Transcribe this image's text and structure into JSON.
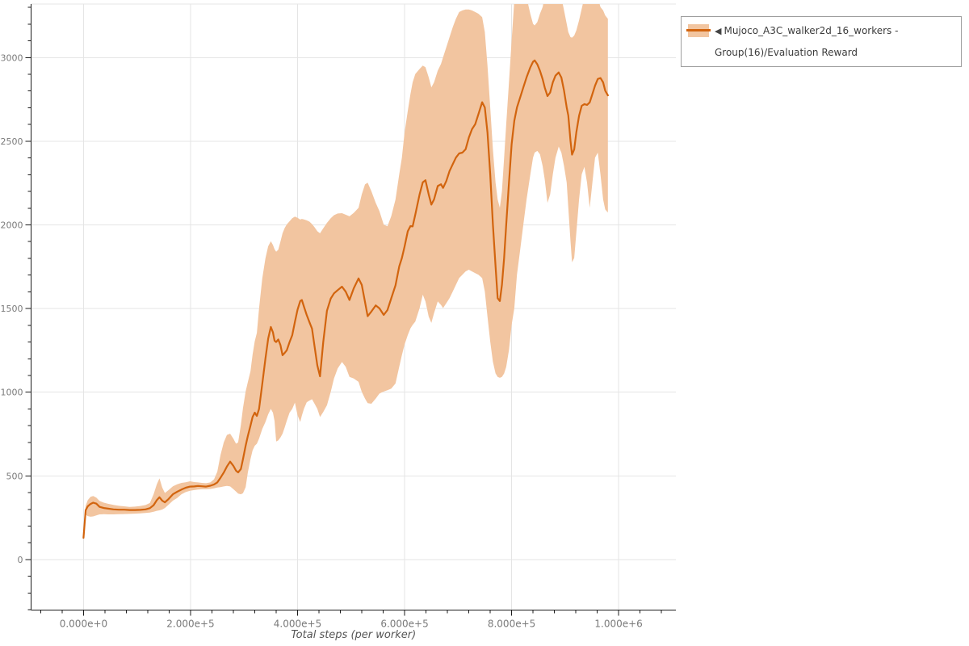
{
  "legend": {
    "collapse_icon": "◀",
    "label": "Mujoco_A3C_walker2d_16_workers - Group(16)/Evaluation Reward"
  },
  "colors": {
    "line": "#d2640e",
    "band": "#f2c5a0",
    "grid": "#e5e5e5",
    "axis": "#1c1c1c",
    "tick_label": "#7a7a7a",
    "axis_title": "#555555",
    "legend_border": "#9e9e9e",
    "legend_text": "#3c3c3c",
    "background": "#ffffff"
  },
  "chart_data": {
    "type": "line",
    "title": "",
    "xlabel": "Total steps (per worker)",
    "ylabel": "",
    "grid": true,
    "legend_position": "top-right-outside",
    "x_range": [
      -98000,
      1107000
    ],
    "y_range": [
      -302,
      3320
    ],
    "x_ticks": {
      "values": [
        0,
        200000,
        400000,
        600000,
        800000,
        1000000
      ],
      "labels": [
        "0.000e+0",
        "2.000e+5",
        "4.000e+5",
        "6.000e+5",
        "8.000e+5",
        "1.000e+6"
      ],
      "minor_step": 40000,
      "minor_range": [
        -80000,
        1080000
      ]
    },
    "y_ticks": {
      "values": [
        0,
        500,
        1000,
        1500,
        2000,
        2500,
        3000
      ],
      "labels": [
        "0",
        "500",
        "1000",
        "1500",
        "2000",
        "2500",
        "3000"
      ],
      "minor_step": 100,
      "minor_range": [
        -300,
        3300
      ]
    },
    "series": [
      {
        "name": "Mujoco_A3C_walker2d_16_workers - Group(16)/Evaluation Reward",
        "type": "line_with_band",
        "color": "#d2640e",
        "band_color": "#f2c5a0",
        "x": [
          0,
          4000,
          8000,
          13000,
          18000,
          24000,
          30000,
          38000,
          46000,
          56000,
          66000,
          76000,
          86000,
          96000,
          106000,
          116000,
          124000,
          131000,
          137000,
          142000,
          147000,
          152000,
          159000,
          167000,
          175000,
          183000,
          191000,
          199000,
          207000,
          214000,
          221000,
          229000,
          237000,
          244000,
          250000,
          256000,
          262000,
          268000,
          274000,
          280000,
          285000,
          289000,
          294000,
          298000,
          303000,
          307000,
          312000,
          316000,
          320000,
          324000,
          328000,
          334000,
          340000,
          345000,
          350000,
          354000,
          357000,
          360000,
          364000,
          368000,
          372000,
          376000,
          380000,
          385000,
          390000,
          395000,
          400000,
          405000,
          408000,
          412000,
          417000,
          422000,
          427000,
          432000,
          437000,
          442000,
          448000,
          455000,
          462000,
          468000,
          475000,
          483000,
          490000,
          497000,
          505000,
          514000,
          520000,
          526000,
          531000,
          538000,
          546000,
          553000,
          561000,
          568000,
          575000,
          583000,
          590000,
          595000,
          600000,
          606000,
          611000,
          615000,
          620000,
          628000,
          634000,
          639000,
          645000,
          650000,
          655000,
          662000,
          668000,
          672000,
          678000,
          684000,
          690000,
          696000,
          702000,
          708000,
          714000,
          720000,
          726000,
          732000,
          738000,
          745000,
          750000,
          755000,
          760000,
          765000,
          770000,
          774000,
          778000,
          782000,
          786000,
          790000,
          795000,
          800000,
          805000,
          810000,
          816000,
          822000,
          828000,
          835000,
          840000,
          843000,
          848000,
          853000,
          858000,
          862000,
          867000,
          872000,
          877000,
          882000,
          888000,
          893000,
          898000,
          903000,
          906000,
          910000,
          913000,
          917000,
          921000,
          926000,
          931000,
          936000,
          941000,
          946000,
          951000,
          956000,
          961000,
          966000,
          971000,
          975000,
          980000
        ],
        "mean": [
          130,
          295,
          318,
          332,
          340,
          334,
          315,
          308,
          304,
          300,
          298,
          298,
          296,
          296,
          297,
          300,
          307,
          325,
          355,
          372,
          352,
          342,
          362,
          390,
          405,
          418,
          429,
          436,
          437,
          440,
          438,
          436,
          441,
          449,
          461,
          489,
          520,
          556,
          585,
          560,
          531,
          521,
          541,
          600,
          680,
          738,
          800,
          852,
          878,
          858,
          900,
          1050,
          1200,
          1320,
          1390,
          1358,
          1308,
          1300,
          1315,
          1282,
          1221,
          1235,
          1251,
          1300,
          1341,
          1420,
          1494,
          1545,
          1551,
          1510,
          1462,
          1420,
          1380,
          1269,
          1160,
          1095,
          1300,
          1487,
          1560,
          1591,
          1610,
          1631,
          1601,
          1551,
          1621,
          1680,
          1642,
          1540,
          1454,
          1482,
          1519,
          1501,
          1462,
          1491,
          1561,
          1639,
          1752,
          1802,
          1870,
          1962,
          1993,
          1991,
          2062,
          2182,
          2255,
          2267,
          2182,
          2121,
          2152,
          2232,
          2243,
          2221,
          2262,
          2322,
          2363,
          2402,
          2427,
          2432,
          2452,
          2522,
          2572,
          2602,
          2662,
          2733,
          2702,
          2552,
          2302,
          2002,
          1752,
          1562,
          1545,
          1642,
          1802,
          2002,
          2252,
          2482,
          2622,
          2702,
          2762,
          2822,
          2882,
          2942,
          2975,
          2983,
          2960,
          2921,
          2871,
          2821,
          2770,
          2791,
          2852,
          2892,
          2911,
          2881,
          2802,
          2702,
          2653,
          2502,
          2420,
          2452,
          2552,
          2652,
          2712,
          2722,
          2717,
          2732,
          2782,
          2832,
          2872,
          2878,
          2852,
          2802,
          2774
        ],
        "lower": [
          130,
          268,
          260,
          256,
          258,
          264,
          270,
          271,
          270,
          270,
          271,
          272,
          273,
          274,
          276,
          278,
          281,
          286,
          291,
          294,
          299,
          308,
          328,
          352,
          368,
          390,
          403,
          411,
          415,
          418,
          420,
          420,
          422,
          426,
          430,
          433,
          437,
          440,
          437,
          421,
          406,
          394,
          390,
          397,
          432,
          520,
          600,
          652,
          680,
          692,
          722,
          780,
          822,
          868,
          900,
          878,
          828,
          705,
          712,
          730,
          752,
          790,
          830,
          878,
          900,
          938,
          862,
          822,
          860,
          902,
          940,
          950,
          958,
          930,
          900,
          852,
          882,
          922,
          1002,
          1082,
          1142,
          1181,
          1152,
          1092,
          1082,
          1062,
          1002,
          962,
          935,
          931,
          962,
          992,
          1004,
          1012,
          1022,
          1052,
          1152,
          1222,
          1285,
          1342,
          1382,
          1402,
          1422,
          1502,
          1583,
          1542,
          1452,
          1414,
          1472,
          1543,
          1522,
          1503,
          1532,
          1562,
          1602,
          1642,
          1682,
          1702,
          1722,
          1732,
          1722,
          1712,
          1702,
          1682,
          1602,
          1452,
          1302,
          1182,
          1112,
          1092,
          1086,
          1092,
          1112,
          1152,
          1252,
          1402,
          1502,
          1702,
          1852,
          2002,
          2152,
          2302,
          2402,
          2432,
          2442,
          2422,
          2352,
          2272,
          2132,
          2182,
          2302,
          2402,
          2468,
          2432,
          2352,
          2252,
          2102,
          1902,
          1776,
          1802,
          1952,
          2152,
          2302,
          2347,
          2252,
          2102,
          2252,
          2402,
          2432,
          2302,
          2152,
          2092,
          2074
        ],
        "upper": [
          130,
          322,
          355,
          375,
          380,
          370,
          350,
          340,
          333,
          327,
          321,
          318,
          315,
          316,
          320,
          326,
          338,
          390,
          450,
          485,
          430,
          398,
          415,
          438,
          450,
          458,
          462,
          468,
          463,
          461,
          458,
          456,
          461,
          480,
          525,
          625,
          700,
          745,
          752,
          722,
          692,
          700,
          805,
          905,
          1005,
          1060,
          1125,
          1225,
          1305,
          1355,
          1500,
          1680,
          1800,
          1872,
          1902,
          1880,
          1855,
          1840,
          1852,
          1900,
          1950,
          1982,
          2003,
          2022,
          2040,
          2050,
          2042,
          2032,
          2036,
          2033,
          2027,
          2020,
          2005,
          1985,
          1962,
          1950,
          1980,
          2012,
          2040,
          2058,
          2068,
          2070,
          2061,
          2051,
          2072,
          2102,
          2182,
          2242,
          2252,
          2202,
          2132,
          2082,
          2002,
          1992,
          2052,
          2152,
          2302,
          2402,
          2552,
          2682,
          2782,
          2852,
          2902,
          2932,
          2952,
          2942,
          2882,
          2822,
          2852,
          2922,
          2962,
          3002,
          3062,
          3122,
          3182,
          3232,
          3272,
          3282,
          3287,
          3287,
          3282,
          3272,
          3262,
          3242,
          3152,
          2952,
          2702,
          2452,
          2252,
          2152,
          2102,
          2202,
          2402,
          2602,
          2852,
          3102,
          3340,
          3360,
          3360,
          3360,
          3360,
          3260,
          3202,
          3192,
          3212,
          3262,
          3302,
          3360,
          3360,
          3360,
          3360,
          3360,
          3360,
          3360,
          3282,
          3202,
          3152,
          3122,
          3119,
          3132,
          3162,
          3222,
          3292,
          3360,
          3360,
          3360,
          3360,
          3360,
          3360,
          3302,
          3282,
          3252,
          3232
        ]
      }
    ]
  }
}
